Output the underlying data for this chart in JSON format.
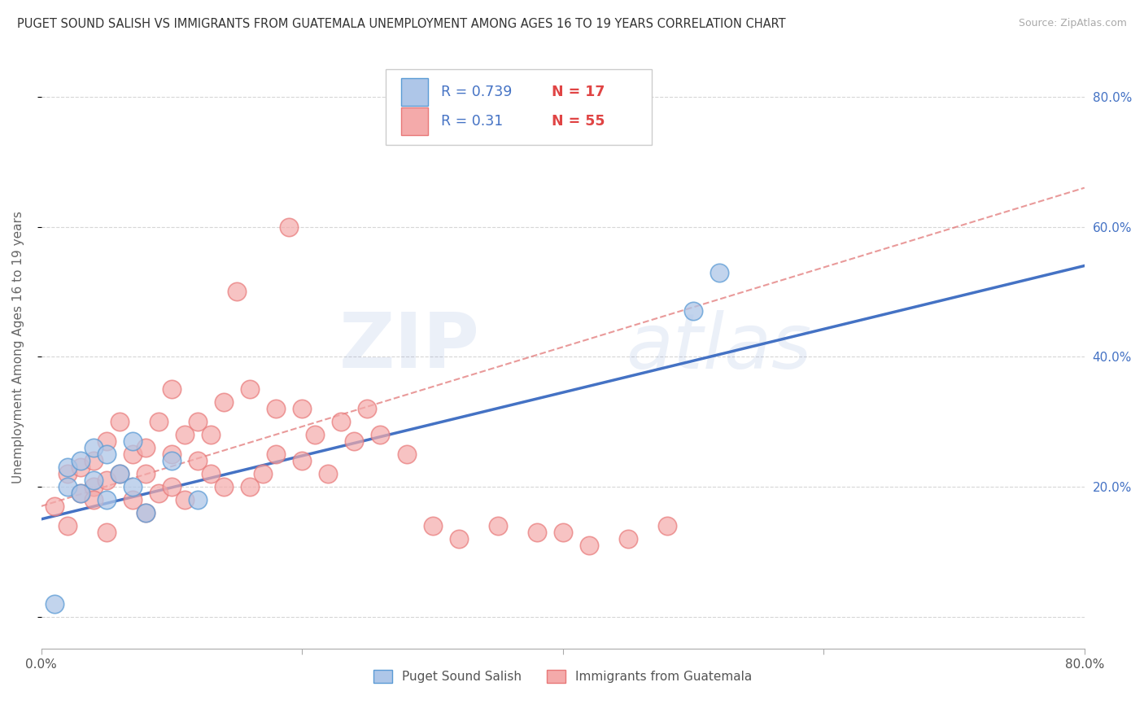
{
  "title": "PUGET SOUND SALISH VS IMMIGRANTS FROM GUATEMALA UNEMPLOYMENT AMONG AGES 16 TO 19 YEARS CORRELATION CHART",
  "source": "Source: ZipAtlas.com",
  "ylabel": "Unemployment Among Ages 16 to 19 years",
  "xlim": [
    0.0,
    0.8
  ],
  "ylim": [
    -0.05,
    0.88
  ],
  "yticks": [
    0.0,
    0.2,
    0.4,
    0.6,
    0.8
  ],
  "ytick_labels_right": [
    "",
    "20.0%",
    "40.0%",
    "60.0%",
    "80.0%"
  ],
  "xticks": [
    0.0,
    0.2,
    0.4,
    0.6,
    0.8
  ],
  "xtick_labels": [
    "0.0%",
    "",
    "",
    "",
    "80.0%"
  ],
  "series1_color": "#aec6e8",
  "series1_edge": "#5b9bd5",
  "series1_line_color": "#4472c4",
  "series1_label": "Puget Sound Salish",
  "series1_R": 0.739,
  "series1_N": 17,
  "series2_color": "#f4aaaa",
  "series2_edge": "#e87878",
  "series2_line_color": "#e07070",
  "series2_label": "Immigrants from Guatemala",
  "series2_R": 0.31,
  "series2_N": 55,
  "legend_R_color": "#4472c4",
  "legend_N_color": "#e04444",
  "background_color": "#ffffff",
  "grid_color": "#cccccc",
  "watermark_zip": "ZIP",
  "watermark_atlas": "atlas",
  "series1_x": [
    0.01,
    0.02,
    0.02,
    0.03,
    0.03,
    0.04,
    0.04,
    0.05,
    0.05,
    0.06,
    0.07,
    0.07,
    0.08,
    0.1,
    0.12,
    0.5,
    0.52
  ],
  "series1_y": [
    0.02,
    0.2,
    0.23,
    0.19,
    0.24,
    0.21,
    0.26,
    0.18,
    0.25,
    0.22,
    0.2,
    0.27,
    0.16,
    0.24,
    0.18,
    0.47,
    0.53
  ],
  "series2_x": [
    0.01,
    0.02,
    0.02,
    0.03,
    0.03,
    0.04,
    0.04,
    0.04,
    0.05,
    0.05,
    0.05,
    0.06,
    0.06,
    0.07,
    0.07,
    0.08,
    0.08,
    0.08,
    0.09,
    0.09,
    0.1,
    0.1,
    0.1,
    0.11,
    0.11,
    0.12,
    0.12,
    0.13,
    0.13,
    0.14,
    0.14,
    0.15,
    0.16,
    0.16,
    0.17,
    0.18,
    0.18,
    0.19,
    0.2,
    0.2,
    0.21,
    0.22,
    0.23,
    0.24,
    0.25,
    0.26,
    0.28,
    0.3,
    0.32,
    0.35,
    0.38,
    0.4,
    0.42,
    0.45,
    0.48
  ],
  "series2_y": [
    0.17,
    0.14,
    0.22,
    0.19,
    0.23,
    0.2,
    0.24,
    0.18,
    0.21,
    0.27,
    0.13,
    0.22,
    0.3,
    0.18,
    0.25,
    0.16,
    0.22,
    0.26,
    0.19,
    0.3,
    0.2,
    0.25,
    0.35,
    0.18,
    0.28,
    0.24,
    0.3,
    0.22,
    0.28,
    0.2,
    0.33,
    0.5,
    0.2,
    0.35,
    0.22,
    0.25,
    0.32,
    0.6,
    0.24,
    0.32,
    0.28,
    0.22,
    0.3,
    0.27,
    0.32,
    0.28,
    0.25,
    0.14,
    0.12,
    0.14,
    0.13,
    0.13,
    0.11,
    0.12,
    0.14
  ]
}
